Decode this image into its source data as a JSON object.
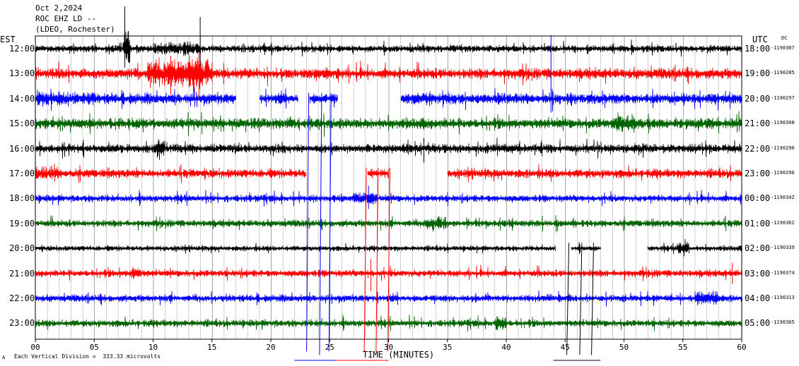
{
  "header": {
    "date": "Oct 2,2024",
    "station": "ROC EHZ LD --",
    "network": "(LDEO, Rochester)"
  },
  "left_axis_title": "EST",
  "right_axis_title": "UTC",
  "dc_label": "DC",
  "footer": {
    "corner_mark": "A",
    "scale_text": "Each Vertical Division =  333.33 microvolts",
    "xlabel": "TIME (MINUTES)"
  },
  "colors": {
    "black": "#000000",
    "red": "#ff0000",
    "blue": "#0000ff",
    "green": "#006400",
    "grid": "#808080"
  },
  "chart_data": {
    "type": "line",
    "title": "ROC EHZ LD -- (LDEO, Rochester) Oct 2,2024",
    "xlabel": "TIME (MINUTES)",
    "xlim": [
      0,
      60
    ],
    "x_ticks": [
      "00",
      "05",
      "10",
      "15",
      "20",
      "25",
      "30",
      "35",
      "40",
      "45",
      "50",
      "55",
      "60"
    ],
    "grid": "vertical lines every minute",
    "series": [
      {
        "est": "12:00",
        "utc": "18:00",
        "dc": "-1190307",
        "color": "black",
        "base_amp": 4,
        "gaps": [],
        "bursts": [
          [
            7.5,
            8,
            25
          ],
          [
            10,
            14,
            10
          ]
        ]
      },
      {
        "est": "13:00",
        "utc": "19:00",
        "dc": "-1190285",
        "color": "red",
        "base_amp": 6,
        "gaps": [],
        "bursts": [
          [
            9.5,
            15,
            20
          ],
          [
            13,
            14,
            30
          ]
        ]
      },
      {
        "est": "14:00",
        "utc": "20:00",
        "dc": "-1190297",
        "color": "blue",
        "base_amp": 6,
        "gaps": [
          [
            17,
            19
          ],
          [
            22.3,
            23.3
          ],
          [
            25.7,
            31
          ]
        ],
        "bursts": [
          [
            0,
            5,
            10
          ],
          [
            32,
            34,
            10
          ]
        ]
      },
      {
        "est": "15:00",
        "utc": "21:00",
        "dc": "-1190308",
        "color": "green",
        "base_amp": 6,
        "gaps": [],
        "bursts": [
          [
            49,
            51,
            12
          ]
        ]
      },
      {
        "est": "16:00",
        "utc": "22:00",
        "dc": "-1190296",
        "color": "black",
        "base_amp": 5,
        "gaps": [],
        "bursts": [
          [
            10,
            11,
            14
          ]
        ]
      },
      {
        "est": "17:00",
        "utc": "23:00",
        "dc": "-1190296",
        "color": "red",
        "base_amp": 5,
        "gaps": [
          [
            23,
            28.2
          ],
          [
            30,
            35
          ]
        ],
        "bursts": [
          [
            0,
            2,
            10
          ]
        ]
      },
      {
        "est": "18:00",
        "utc": "00:00",
        "dc": "-1190342",
        "color": "blue",
        "base_amp": 4,
        "gaps": [],
        "bursts": [
          [
            27,
            29,
            10
          ]
        ]
      },
      {
        "est": "19:00",
        "utc": "01:00",
        "dc": "-1190361",
        "color": "green",
        "base_amp": 4,
        "gaps": [],
        "bursts": [
          [
            33,
            35,
            10
          ]
        ]
      },
      {
        "est": "20:00",
        "utc": "02:00",
        "dc": "-1190339",
        "color": "black",
        "base_amp": 3,
        "gaps": [
          [
            44.2,
            45.5
          ],
          [
            48,
            52
          ]
        ],
        "bursts": [
          [
            54.5,
            55.5,
            12
          ]
        ]
      },
      {
        "est": "21:00",
        "utc": "03:00",
        "dc": "-1190374",
        "color": "red",
        "base_amp": 4,
        "gaps": [],
        "bursts": [
          [
            8,
            9,
            10
          ]
        ]
      },
      {
        "est": "22:00",
        "utc": "04:00",
        "dc": "-1190313",
        "color": "blue",
        "base_amp": 4,
        "gaps": [],
        "bursts": [
          [
            56,
            58,
            10
          ]
        ]
      },
      {
        "est": "23:00",
        "utc": "05:00",
        "dc": "-1190365",
        "color": "green",
        "base_amp": 4,
        "gaps": [],
        "bursts": [
          [
            39,
            40,
            10
          ]
        ]
      }
    ],
    "spikes": [
      {
        "minute": 7.6,
        "row": 0,
        "color": "black",
        "up": 60,
        "down": 15
      },
      {
        "minute": 7.9,
        "row": 0,
        "color": "black",
        "up": 25,
        "down": 10
      },
      {
        "minute": 14.0,
        "row": 0,
        "color": "black",
        "up": 45,
        "down": 25
      },
      {
        "minute": 13.9,
        "row": 1,
        "color": "red",
        "up": 30,
        "down": 35
      },
      {
        "minute": 11.5,
        "row": 1,
        "color": "red",
        "up": 25,
        "down": 30
      },
      {
        "minute": 16.0,
        "row": 1,
        "color": "red",
        "up": 15,
        "down": 15
      },
      {
        "minute": 43.8,
        "row": 2,
        "color": "blue",
        "up": 90,
        "down": 20
      },
      {
        "minute": 28.5,
        "row": 9,
        "color": "red",
        "up": 20,
        "down": 25
      },
      {
        "minute": 33.0,
        "row": 4,
        "color": "black",
        "up": 15,
        "down": 20
      },
      {
        "minute": 28.3,
        "row": 6,
        "color": "blue",
        "up": 18,
        "down": 15
      },
      {
        "minute": 59.2,
        "row": 9,
        "color": "red",
        "up": 15,
        "down": 15
      }
    ],
    "vertical_traces": [
      {
        "minute": 23.1,
        "from_row": 2,
        "to_row": 11,
        "color": "blue",
        "extend": 40
      },
      {
        "minute": 24.2,
        "from_row": 2,
        "to_row": 11,
        "color": "blue",
        "extend": 45
      },
      {
        "minute": 25.0,
        "from_row": 2,
        "to_row": 11,
        "color": "blue",
        "extend": 40
      },
      {
        "minute": 28.0,
        "from_row": 5,
        "to_row": 11,
        "color": "red",
        "extend": 40
      },
      {
        "minute": 29.0,
        "from_row": 5,
        "to_row": 11,
        "color": "red",
        "extend": 40
      },
      {
        "minute": 30.0,
        "from_row": 5,
        "to_row": 11,
        "color": "red",
        "extend": 40
      },
      {
        "minute": 45.2,
        "from_row": 8,
        "to_row": 11,
        "color": "black",
        "extend": 45
      },
      {
        "minute": 46.3,
        "from_row": 8,
        "to_row": 11,
        "color": "black",
        "extend": 45
      },
      {
        "minute": 47.3,
        "from_row": 8,
        "to_row": 11,
        "color": "black",
        "extend": 45
      }
    ],
    "bottom_lines": [
      {
        "from": 22.0,
        "to": 25.5,
        "color": "blue"
      },
      {
        "from": 25.5,
        "to": 30.0,
        "color": "red"
      },
      {
        "from": 44.0,
        "to": 48.0,
        "color": "black"
      }
    ]
  }
}
